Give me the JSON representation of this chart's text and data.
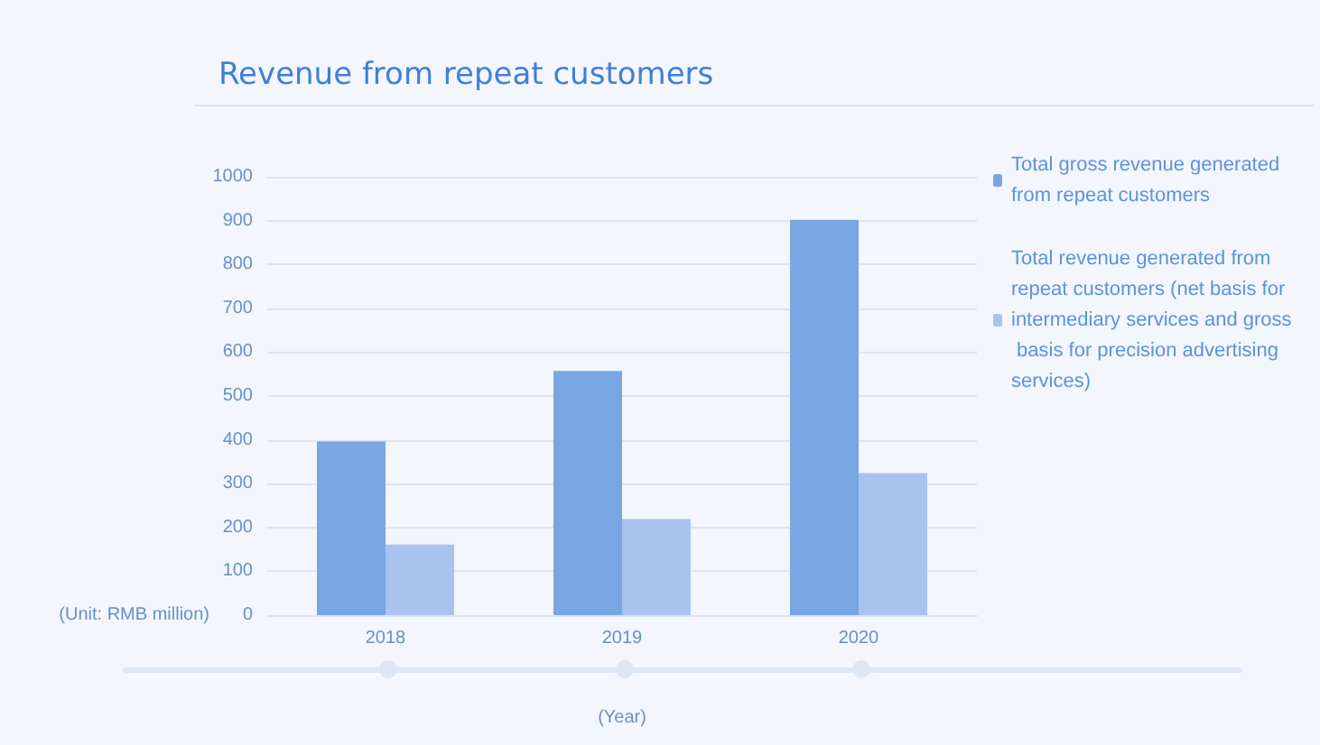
{
  "chart_data": {
    "type": "bar",
    "title": "Revenue from repeat customers",
    "xlabel": "(Year)",
    "ylabel": "(Unit: RMB million)",
    "categories": [
      "2018",
      "2019",
      "2020"
    ],
    "series": [
      {
        "name": "Total gross revenue generated from repeat customers",
        "color": "#77a6e3",
        "values": [
          396,
          557,
          902
        ]
      },
      {
        "name": "Total revenue generated from repeat customers (net basis for intermediary services and gross basis for precision advertising services)",
        "color": "#a9c3ee",
        "values": [
          161,
          219,
          324
        ]
      }
    ],
    "ylim": [
      0,
      1000
    ],
    "yticks": [
      0,
      100,
      200,
      300,
      400,
      500,
      600,
      700,
      800,
      900,
      1000
    ],
    "grid": "y",
    "legend": "right"
  }
}
